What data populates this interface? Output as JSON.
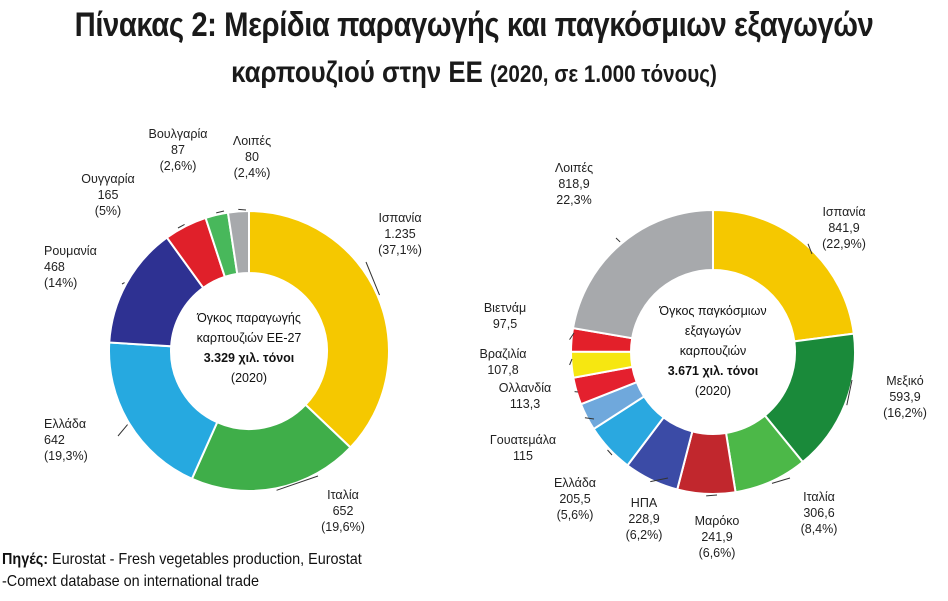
{
  "header": {
    "title_line1": "Πίνακας 2: Μερίδια παραγωγής και παγκόσμιων εξαγωγών",
    "title_line2_main": "καρπουζιού στην ΕΕ",
    "title_line2_sub": "(2020, σε 1.000 τόνους)"
  },
  "chart_data": [
    {
      "type": "pie",
      "donut": true,
      "center_text": [
        "Όγκος παραγωγής",
        "καρπουζιών ΕΕ-27",
        "3.329 χιλ. τόνοι",
        "(2020)"
      ],
      "slices": [
        {
          "name": "Ισπανία",
          "value_text": "1.235",
          "share_text": "(37,1%)",
          "value": 1235,
          "share": 37.1,
          "color": "#f5c800"
        },
        {
          "name": "Ιταλία",
          "value_text": "652",
          "share_text": "(19,6%)",
          "value": 652,
          "share": 19.6,
          "color": "#3fae49"
        },
        {
          "name": "Ελλάδα",
          "value_text": "642",
          "share_text": "(19,3%)",
          "value": 642,
          "share": 19.3,
          "color": "#26a9e0"
        },
        {
          "name": "Ρουμανία",
          "value_text": "468",
          "share_text": "(14%)",
          "value": 468,
          "share": 14.0,
          "color": "#2e3192"
        },
        {
          "name": "Ουγγαρία",
          "value_text": "165",
          "share_text": "(5%)",
          "value": 165,
          "share": 5.0,
          "color": "#e0202a"
        },
        {
          "name": "Βουλγαρία",
          "value_text": "87",
          "share_text": "(2,6%)",
          "value": 87,
          "share": 2.6,
          "color": "#48b85b"
        },
        {
          "name": "Λοιπές",
          "value_text": "80",
          "share_text": "(2,4%)",
          "value": 80,
          "share": 2.4,
          "color": "#a7a9ac"
        }
      ]
    },
    {
      "type": "pie",
      "donut": true,
      "center_text": [
        "Όγκος παγκόσμιων",
        "εξαγωγών",
        "καρπουζιών",
        "3.671 χιλ. τόνοι",
        "(2020)"
      ],
      "slices": [
        {
          "name": "Ισπανία",
          "value_text": "841,9",
          "share_text": "(22,9%)",
          "value": 841.9,
          "share": 22.9,
          "color": "#f5c800"
        },
        {
          "name": "Μεξικό",
          "value_text": "593,9",
          "share_text": "(16,2%)",
          "value": 593.9,
          "share": 16.2,
          "color": "#1a8a3a"
        },
        {
          "name": "Ιταλία",
          "value_text": "306,6",
          "share_text": "(8,4%)",
          "value": 306.6,
          "share": 8.4,
          "color": "#4cb848"
        },
        {
          "name": "Μαρόκο",
          "value_text": "241,9",
          "share_text": "(6,6%)",
          "value": 241.9,
          "share": 6.6,
          "color": "#c1272d"
        },
        {
          "name": "ΗΠΑ",
          "value_text": "228,9",
          "share_text": "(6,2%)",
          "value": 228.9,
          "share": 6.2,
          "color": "#3b4ba6"
        },
        {
          "name": "Ελλάδα",
          "value_text": "205,5",
          "share_text": "(5,6%)",
          "value": 205.5,
          "share": 5.6,
          "color": "#2aa8e0"
        },
        {
          "name": "Γουατεμάλα",
          "value_text": "115",
          "share_text": "",
          "value": 115,
          "share": 3.1,
          "color": "#6fa8dc"
        },
        {
          "name": "Ολλανδία",
          "value_text": "113,3",
          "share_text": "",
          "value": 113.3,
          "share": 3.1,
          "color": "#e4202e"
        },
        {
          "name": "Βραζιλία",
          "value_text": "107,8",
          "share_text": "",
          "value": 107.8,
          "share": 2.9,
          "color": "#f6e711"
        },
        {
          "name": "Βιετνάμ",
          "value_text": "97,5",
          "share_text": "",
          "value": 97.5,
          "share": 2.7,
          "color": "#e3202a"
        },
        {
          "name": "Λοιπές",
          "value_text": "818,9",
          "share_text": "22,3%",
          "value": 818.9,
          "share": 22.3,
          "color": "#a7a9ac"
        }
      ]
    }
  ],
  "footer": {
    "source_label": "Πηγές:",
    "source_line1": "Eurostat - Fresh vegetables production, Eurostat",
    "source_line2": "-Comext database on international trade"
  }
}
